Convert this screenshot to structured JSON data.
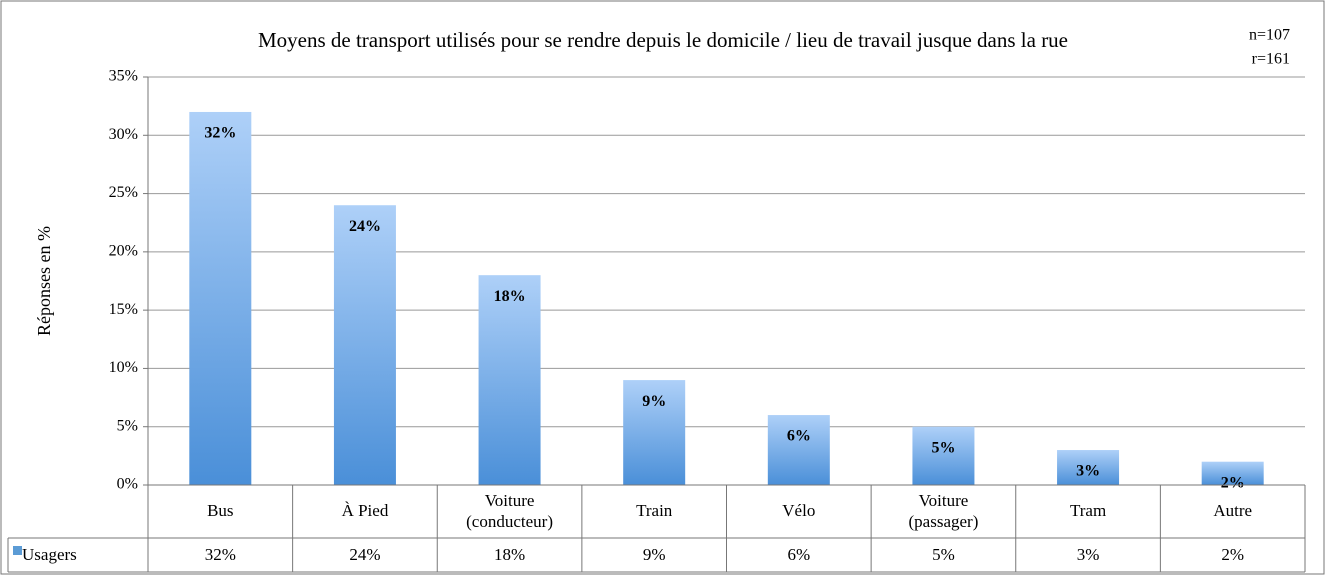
{
  "chart_data": {
    "type": "bar",
    "title": "Moyens de transport utilisés pour se rendre depuis le domicile / lieu de travail jusque dans la rue",
    "annotations": [
      "n=107",
      "r=161"
    ],
    "y_label": "Réponses en %",
    "categories": [
      "Bus",
      "À Pied",
      "Voiture (conducteur)",
      "Train",
      "Vélo",
      "Voiture (passager)",
      "Tram",
      "Autre"
    ],
    "series": [
      {
        "name": "Usagers",
        "color": "#5b9bd5",
        "values": [
          32,
          24,
          18,
          9,
          6,
          5,
          3,
          2
        ],
        "value_labels": [
          "32%",
          "24%",
          "18%",
          "9%",
          "6%",
          "5%",
          "3%",
          "2%"
        ]
      }
    ],
    "ylim": [
      0,
      35
    ],
    "yticks": [
      {
        "value": 0,
        "label": "0%"
      },
      {
        "value": 5,
        "label": "5%"
      },
      {
        "value": 10,
        "label": "10%"
      },
      {
        "value": 15,
        "label": "15%"
      },
      {
        "value": 20,
        "label": "20%"
      },
      {
        "value": 25,
        "label": "25%"
      },
      {
        "value": 30,
        "label": "30%"
      },
      {
        "value": 35,
        "label": "35%"
      }
    ],
    "grid": true,
    "data_table": true
  }
}
